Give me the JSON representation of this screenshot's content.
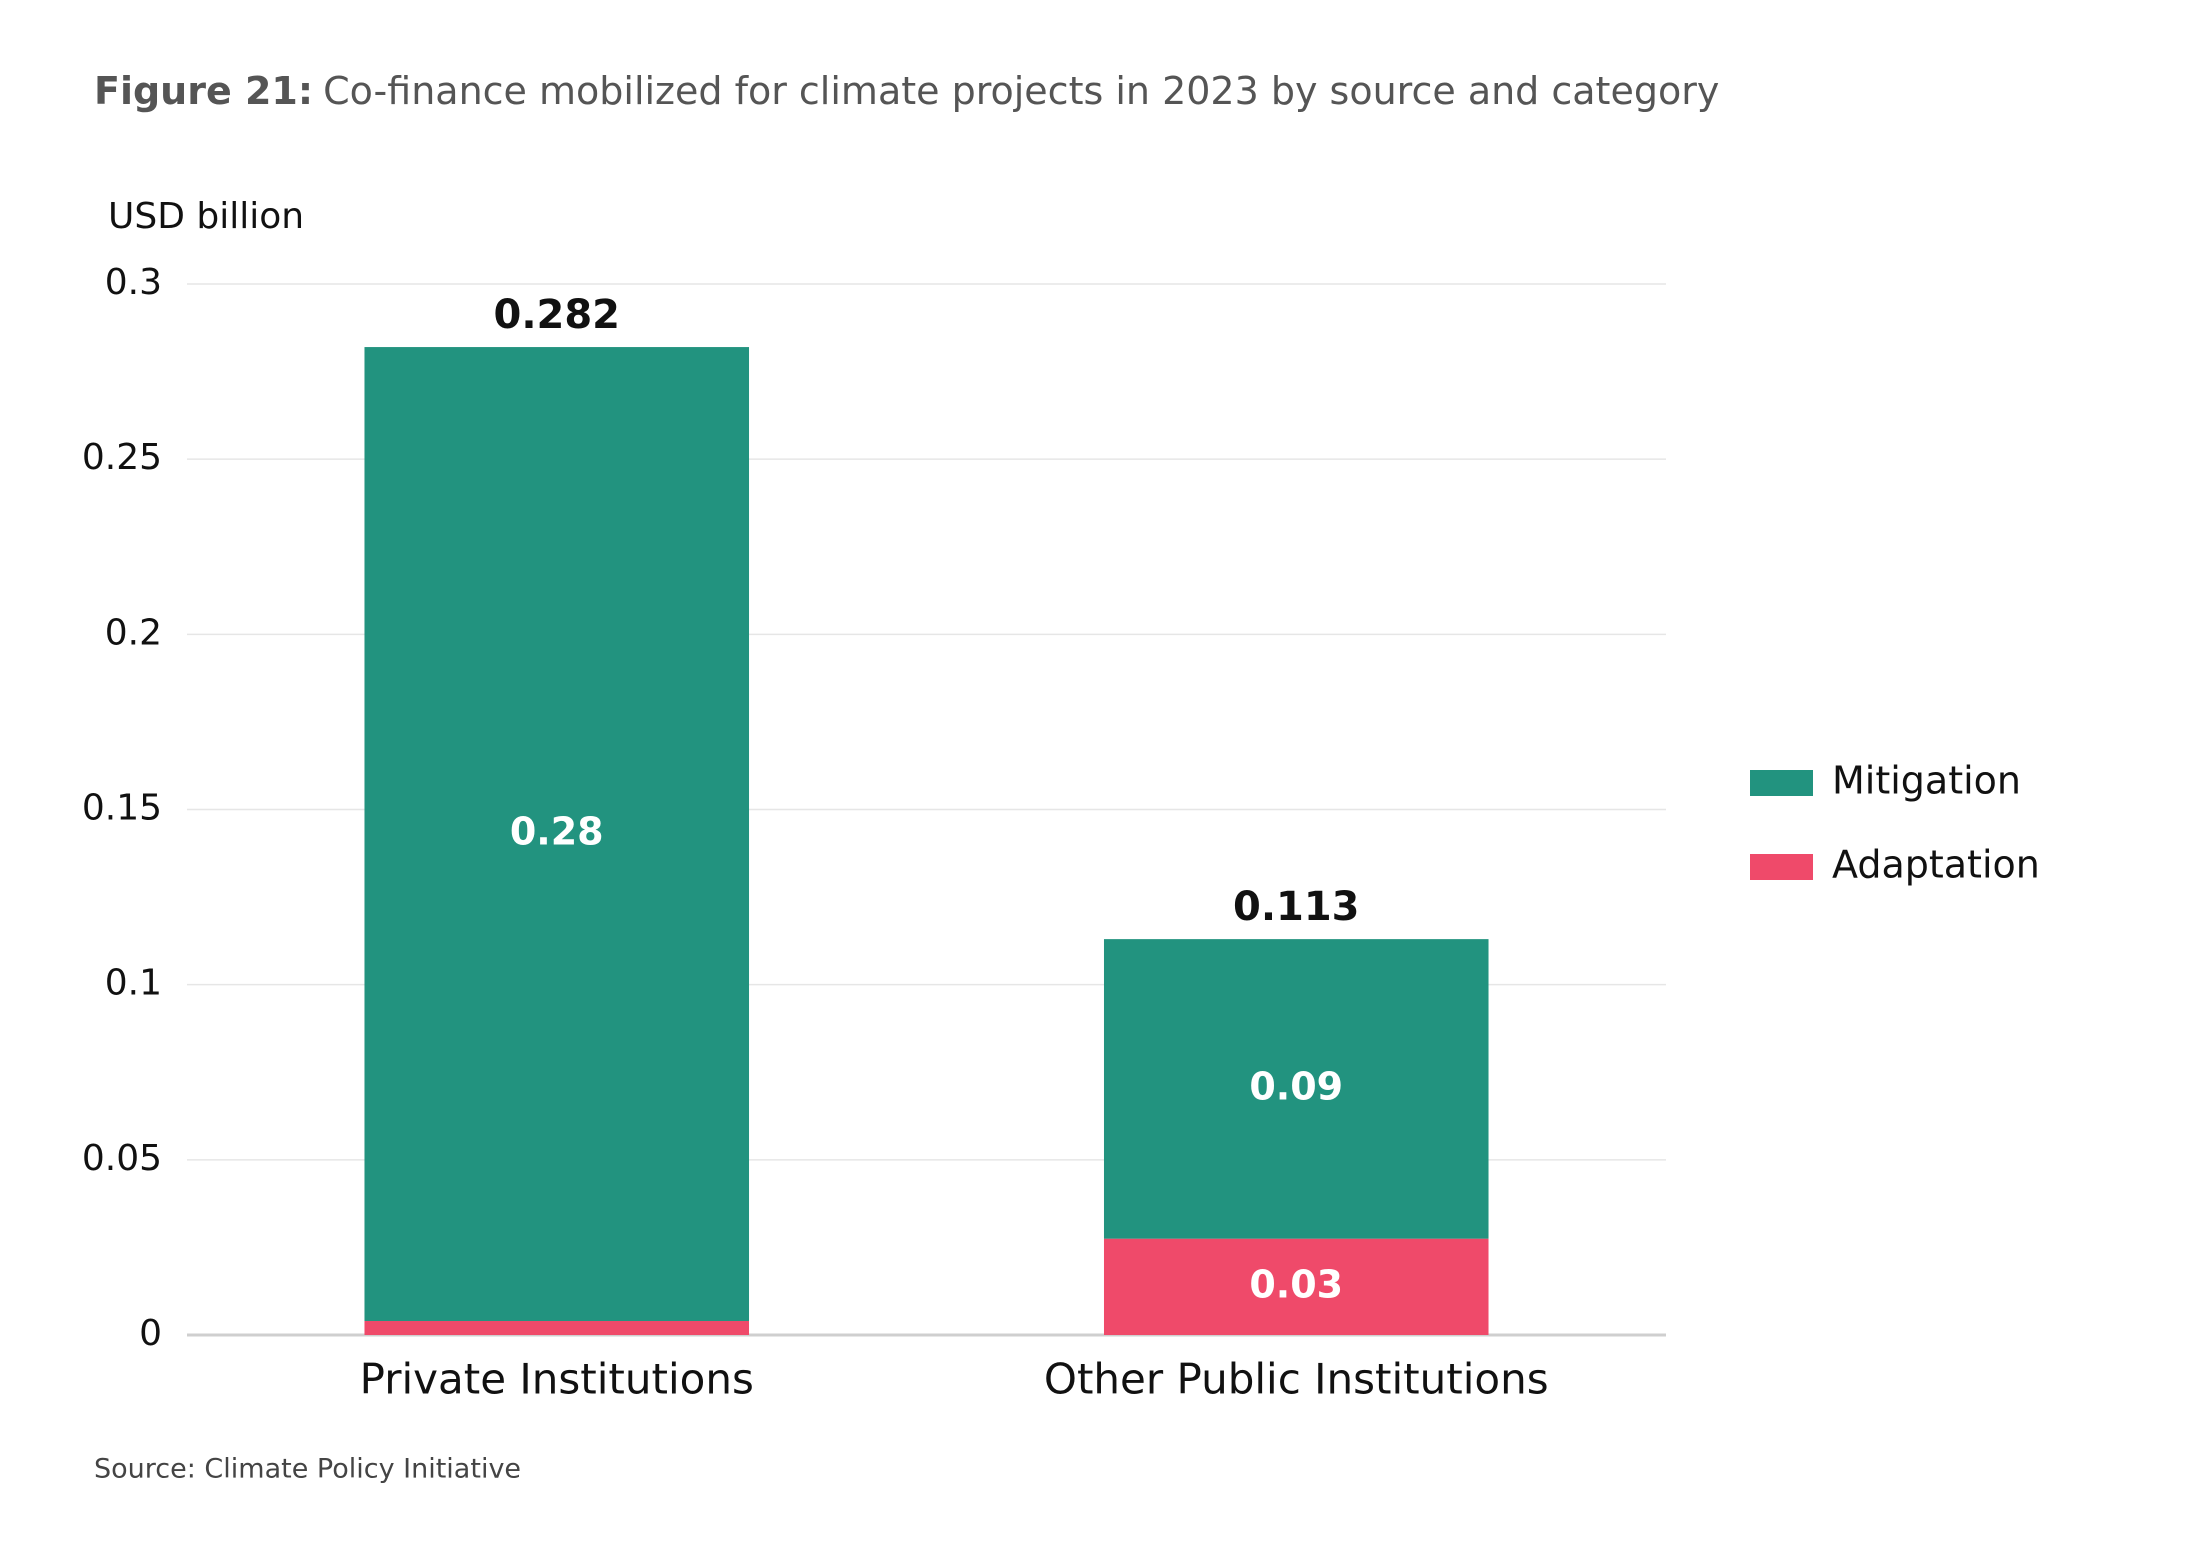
{
  "chart_data": {
    "type": "stacked_bar",
    "title_label": "Figure 21:",
    "title": "Co-finance mobilized for climate projects in 2023 by source and category",
    "y_axis_label": "USD billion",
    "source": "Source: Climate Policy Initiative",
    "categories": [
      "Private Institutions",
      "Other Public Institutions"
    ],
    "series": [
      {
        "name": "Adaptation",
        "color": "#ef4a6a",
        "values": [
          0.004,
          0.0275
        ],
        "value_labels": [
          null,
          "0.03"
        ]
      },
      {
        "name": "Mitigation",
        "color": "#22937f",
        "values": [
          0.278,
          0.0855
        ],
        "value_labels": [
          "0.28",
          "0.09"
        ]
      }
    ],
    "totals": [
      0.282,
      0.113
    ],
    "ylim": [
      0,
      0.3
    ],
    "yticks": [
      0,
      0.05,
      0.1,
      0.15,
      0.2,
      0.25,
      0.3
    ],
    "grid": true,
    "legend": "right"
  }
}
